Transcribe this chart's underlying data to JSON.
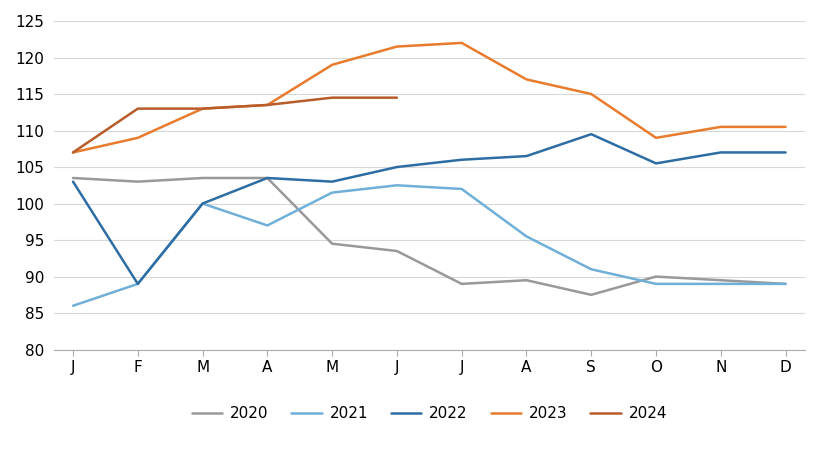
{
  "months": [
    "J",
    "F",
    "M",
    "A",
    "M",
    "J",
    "J",
    "A",
    "S",
    "O",
    "N",
    "D"
  ],
  "series": {
    "2020": [
      103.5,
      103.0,
      103.5,
      103.5,
      94.5,
      93.5,
      89.0,
      89.5,
      87.5,
      90.0,
      89.5,
      89.0
    ],
    "2021": [
      86.0,
      89.0,
      100.0,
      97.0,
      101.5,
      102.5,
      102.0,
      95.5,
      91.0,
      89.0,
      89.0,
      89.0
    ],
    "2022": [
      103.0,
      89.0,
      100.0,
      103.5,
      103.0,
      105.0,
      106.0,
      106.5,
      109.5,
      105.5,
      107.0,
      107.0
    ],
    "2023": [
      107.0,
      109.0,
      113.0,
      113.5,
      119.0,
      121.5,
      122.0,
      117.0,
      115.0,
      109.0,
      110.5,
      110.5
    ],
    "2024": [
      107.0,
      113.0,
      113.0,
      113.5,
      114.5,
      114.5,
      null,
      null,
      null,
      null,
      null,
      null
    ]
  },
  "colors": {
    "2020": "#999999",
    "2021": "#70B0D8",
    "2022": "#2E6DA4",
    "2023": "#E87B2C",
    "2024": "#B85C2A"
  },
  "ylim": [
    80,
    125
  ],
  "yticks": [
    80,
    85,
    90,
    95,
    100,
    105,
    110,
    115,
    120,
    125
  ],
  "background_color": "#ffffff",
  "grid_color": "#d8d8d8",
  "line_width": 1.8
}
